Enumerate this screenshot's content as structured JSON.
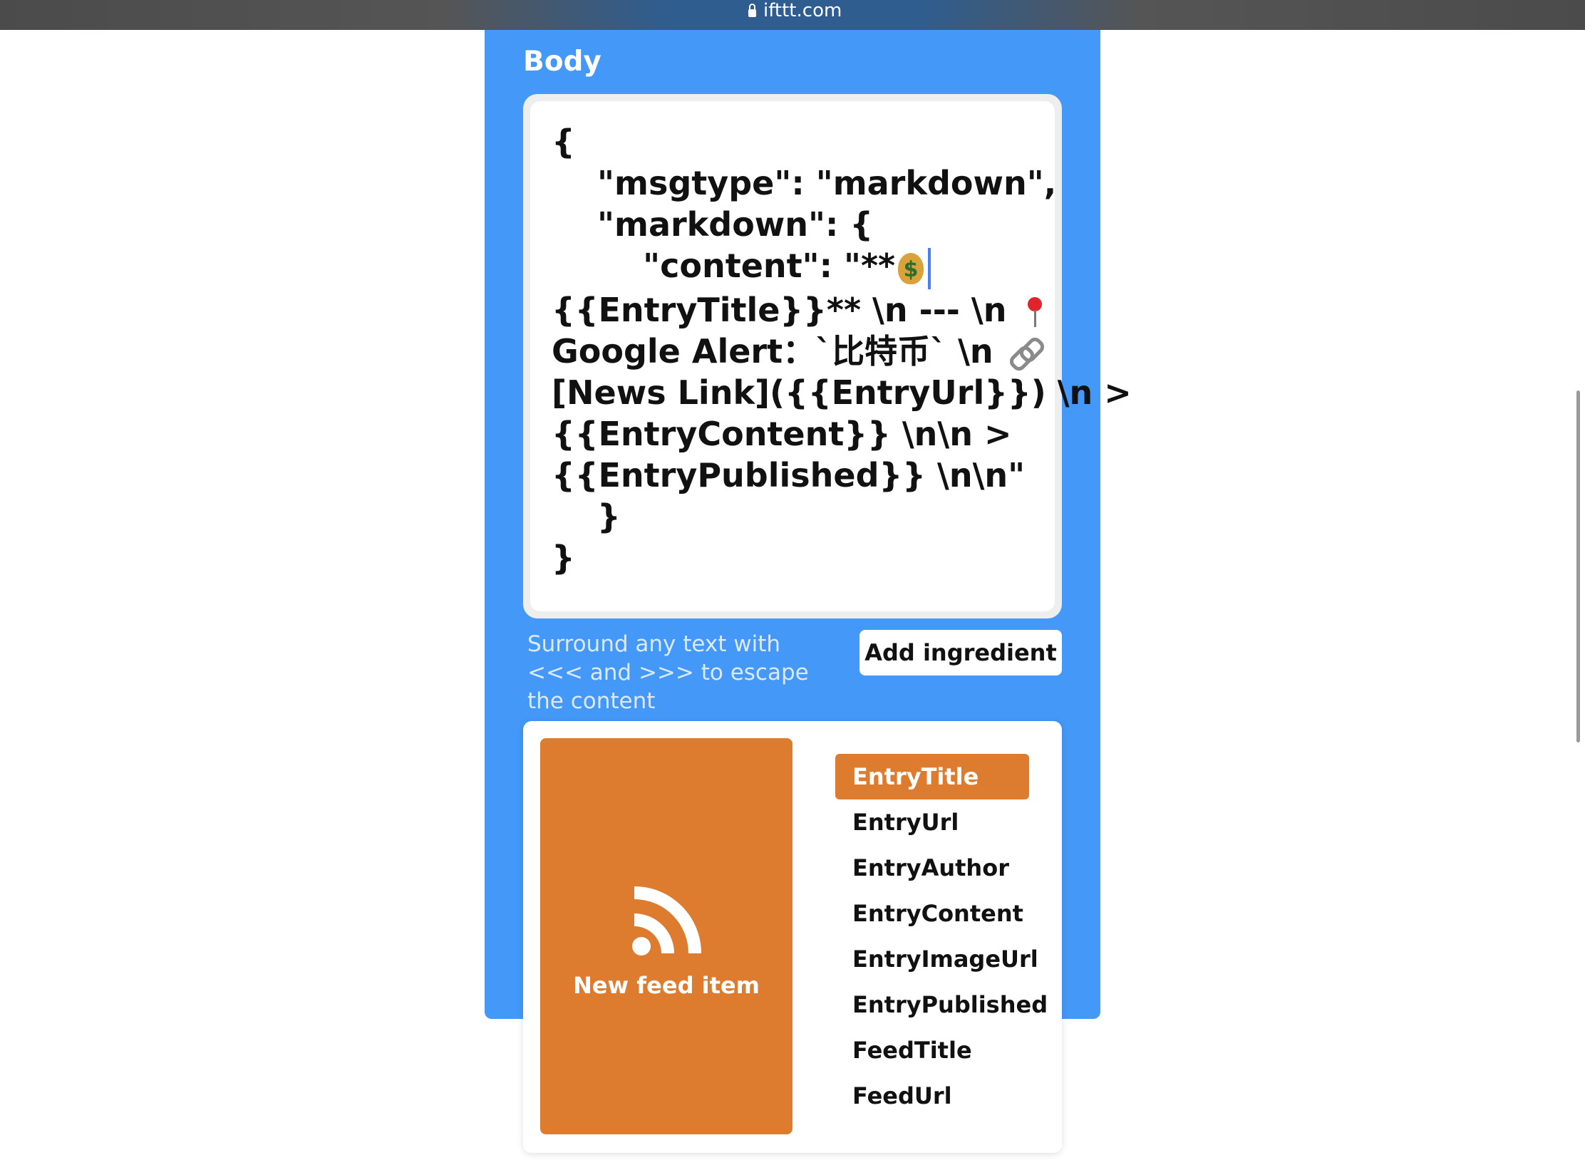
{
  "browser": {
    "url": "ifttt.com"
  },
  "form": {
    "field_label": "Body",
    "body_lines": [
      "{",
      "    \"msgtype\": \"markdown\",",
      "    \"markdown\": {",
      "        \"content\": \"**",
      "{{EntryTitle}}** \\n --- \\n",
      "Google Alert：`比特币` \\n",
      "[News Link]({{EntryUrl}}) \\n >",
      "{{EntryContent}} \\n\\n >",
      "{{EntryPublished}} \\n\\n\"",
      "    }",
      "}"
    ],
    "hint": "Surround any text with <<< and >>> to escape the content",
    "add_ingredient_label": "Add ingredient"
  },
  "ingredients": {
    "service_name": "New feed item",
    "service_icon": "rss-icon",
    "service_color": "#dd7b2f",
    "selected": "EntryTitle",
    "items": [
      "EntryTitle",
      "EntryUrl",
      "EntryAuthor",
      "EntryContent",
      "EntryImageUrl",
      "EntryPublished",
      "FeedTitle",
      "FeedUrl"
    ]
  },
  "colors": {
    "panel_blue": "#4498f7",
    "accent_orange": "#dd7b2f"
  }
}
